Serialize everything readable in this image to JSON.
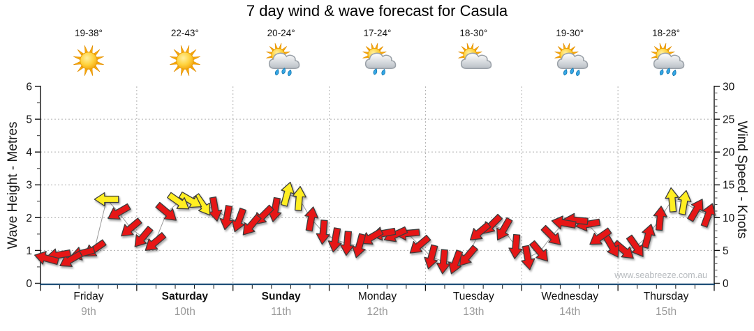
{
  "title": "7 day wind & wave forecast for Casula",
  "watermark": "www.seabreeze.com.au",
  "axes": {
    "left": {
      "label": "Wave Height - Metres",
      "ticks": [
        0,
        1,
        2,
        3,
        4,
        5,
        6
      ],
      "range": [
        0,
        6
      ]
    },
    "right": {
      "label": "Wind Speed - Knots",
      "ticks": [
        0,
        5,
        10,
        15,
        20,
        25,
        30
      ],
      "range": [
        0,
        30
      ]
    }
  },
  "days": [
    {
      "name": "Friday",
      "date": "9th",
      "temp": "19-38°",
      "icon": "sunny",
      "rain": 0,
      "weight": "normal"
    },
    {
      "name": "Saturday",
      "date": "10th",
      "temp": "22-43°",
      "icon": "sunny",
      "rain": 0,
      "weight": "bold"
    },
    {
      "name": "Sunday",
      "date": "11th",
      "temp": "20-24°",
      "icon": "sun-cloud-rain",
      "rain": 3,
      "weight": "bold"
    },
    {
      "name": "Monday",
      "date": "12th",
      "temp": "17-24°",
      "icon": "sun-cloud-rain",
      "rain": 2,
      "weight": "normal"
    },
    {
      "name": "Tuesday",
      "date": "13th",
      "temp": "18-30°",
      "icon": "sun-cloud",
      "rain": 0,
      "weight": "normal"
    },
    {
      "name": "Wednesday",
      "date": "14th",
      "temp": "19-30°",
      "icon": "sun-cloud-rain",
      "rain": 3,
      "weight": "normal"
    },
    {
      "name": "Thursday",
      "date": "15th",
      "temp": "18-28°",
      "icon": "sun-cloud-rain",
      "rain": 3,
      "weight": "normal"
    }
  ],
  "chart_data": {
    "type": "line",
    "title": "7 day wind & wave forecast for Casula",
    "x_categories": [
      "Friday 9th",
      "Saturday 10th",
      "Sunday 11th",
      "Monday 12th",
      "Tuesday 13th",
      "Wednesday 14th",
      "Thursday 15th"
    ],
    "ylabel_left": "Wave Height - Metres",
    "ylim_left": [
      0,
      6
    ],
    "ylabel_right": "Wind Speed - Knots",
    "ylim_right": [
      0,
      30
    ],
    "grid": true,
    "legend": "none",
    "series": [
      {
        "name": "Wind speed & direction arrows",
        "unit": "knots",
        "samples_per_day": 8,
        "knots": [
          3.8,
          4.3,
          3.6,
          4.6,
          5.2,
          12.8,
          10.8,
          8.4,
          7.0,
          6.2,
          10.8,
          12.4,
          12.6,
          11.9,
          11.3,
          10.0,
          9.6,
          8.8,
          10.3,
          11.2,
          13.6,
          12.9,
          9.8,
          7.8,
          6.6,
          6.1,
          5.7,
          7.0,
          7.6,
          7.4,
          7.6,
          5.8,
          4.0,
          3.3,
          3.2,
          4.1,
          7.8,
          8.9,
          8.2,
          5.6,
          3.9,
          4.8,
          7.2,
          9.2,
          9.6,
          9.0,
          7.0,
          5.6,
          5.0,
          5.6,
          7.2,
          9.9,
          12.7,
          12.3,
          11.2,
          10.4
        ],
        "dir_deg": [
          195,
          170,
          150,
          165,
          145,
          180,
          150,
          140,
          130,
          140,
          40,
          35,
          30,
          55,
          80,
          100,
          110,
          130,
          135,
          100,
          285,
          275,
          280,
          95,
          100,
          95,
          105,
          150,
          170,
          155,
          175,
          140,
          105,
          95,
          110,
          130,
          140,
          135,
          120,
          95,
          80,
          50,
          45,
          190,
          185,
          170,
          145,
          60,
          40,
          55,
          285,
          275,
          265,
          280,
          300,
          290
        ],
        "strength_color": [
          "r",
          "r",
          "r",
          "r",
          "r",
          "y",
          "r",
          "r",
          "r",
          "r",
          "r",
          "y",
          "y",
          "y",
          "r",
          "r",
          "r",
          "r",
          "r",
          "r",
          "y",
          "y",
          "r",
          "r",
          "r",
          "r",
          "r",
          "r",
          "r",
          "r",
          "r",
          "r",
          "r",
          "r",
          "r",
          "r",
          "r",
          "r",
          "r",
          "r",
          "r",
          "r",
          "r",
          "r",
          "r",
          "r",
          "r",
          "r",
          "r",
          "r",
          "r",
          "r",
          "y",
          "y",
          "r",
          "r"
        ]
      }
    ]
  },
  "colors": {
    "arrow_red": "#e61414",
    "arrow_yellow": "#ffee22",
    "arrow_outline": "#3d3d3d",
    "connector_gray": "#9a9a9a",
    "xaxis_blue": "#1d4e77",
    "grid_gray": "#b0b0b0",
    "date_gray": "#9a9a9a",
    "watermark_gray": "#b7bbbf"
  }
}
